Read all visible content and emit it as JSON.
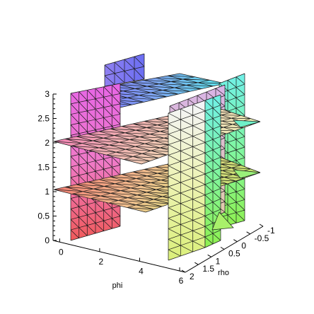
{
  "chart_data": {
    "type": "surface3d",
    "title": "",
    "axes": {
      "z": {
        "label": "",
        "ticks": [
          "0",
          "0.5",
          "1",
          "1.5",
          "2",
          "2.5",
          "3"
        ],
        "range": [
          0,
          3
        ]
      },
      "phi": {
        "label": "phi",
        "ticks": [
          "0",
          "2",
          "4",
          "6"
        ],
        "range": [
          0,
          6.283
        ]
      },
      "rho": {
        "label": "rho",
        "ticks": [
          "-1",
          "-0.5",
          "0",
          "0.5",
          "1",
          "1.5",
          "2"
        ],
        "range": [
          -1,
          2
        ]
      }
    },
    "surfaces": [
      {
        "orientation": "horizontal",
        "z": 1
      },
      {
        "orientation": "horizontal",
        "z": 2
      },
      {
        "orientation": "vertical-phi-plane",
        "rho": 0
      },
      {
        "orientation": "vertical-phi-plane",
        "rho": 1
      },
      {
        "orientation": "vertical-rho-plane",
        "phi": 0
      },
      {
        "orientation": "vertical-rho-plane",
        "phi": 6.283
      }
    ],
    "grid": false,
    "colormap": "hue"
  }
}
